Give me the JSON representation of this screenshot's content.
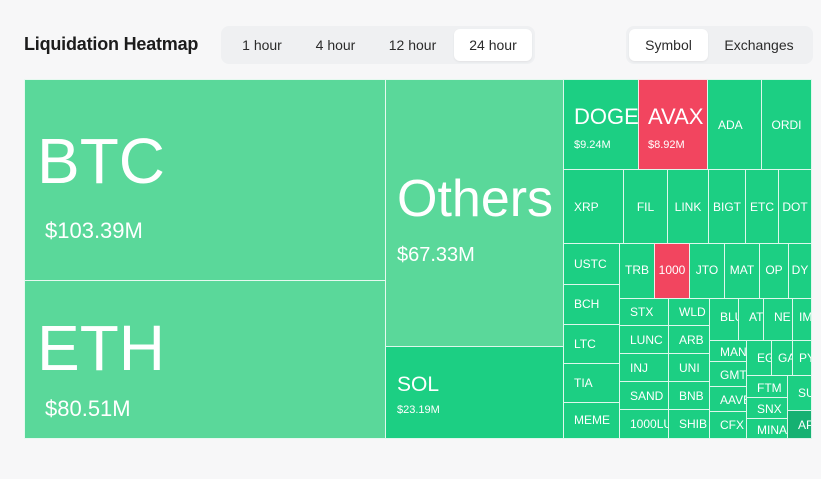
{
  "header": {
    "title": "Liquidation Heatmap",
    "time_options": [
      "1 hour",
      "4 hour",
      "12 hour",
      "24 hour"
    ],
    "time_selected": "24 hour",
    "view_options": [
      "Symbol",
      "Exchanges"
    ],
    "view_selected": "Symbol"
  },
  "colors": {
    "long_light": "#5ad89a",
    "long": "#1ccf83",
    "short": "#f2455f",
    "long_dark": "#16b172"
  },
  "tiles": {
    "btc": {
      "symbol": "BTC",
      "value": "$103.39M"
    },
    "eth": {
      "symbol": "ETH",
      "value": "$80.51M"
    },
    "others": {
      "symbol": "Others",
      "value": "$67.33M"
    },
    "sol": {
      "symbol": "SOL",
      "value": "$23.19M"
    },
    "doge": {
      "symbol": "DOGE",
      "value": "$9.24M"
    },
    "avax": {
      "symbol": "AVAX",
      "value": "$8.92M"
    },
    "ada": {
      "symbol": "ADA"
    },
    "ordi": {
      "symbol": "ORDI"
    },
    "xrp": {
      "symbol": "XRP"
    },
    "fil": {
      "symbol": "FIL"
    },
    "link": {
      "symbol": "LINK"
    },
    "bigt": {
      "symbol": "BIGT"
    },
    "etc": {
      "symbol": "ETC"
    },
    "dot": {
      "symbol": "DOT"
    },
    "ustc": {
      "symbol": "USTC"
    },
    "trb": {
      "symbol": "TRB"
    },
    "k1000": {
      "symbol": "1000"
    },
    "jto": {
      "symbol": "JTO"
    },
    "mat": {
      "symbol": "MAT"
    },
    "op": {
      "symbol": "OP"
    },
    "dy": {
      "symbol": "DY"
    },
    "bch": {
      "symbol": "BCH"
    },
    "stx": {
      "symbol": "STX"
    },
    "wld": {
      "symbol": "WLD"
    },
    "blu": {
      "symbol": "BLU"
    },
    "ato": {
      "symbol": "ATO"
    },
    "ne": {
      "symbol": "NE"
    },
    "im": {
      "symbol": "IM"
    },
    "ltc": {
      "symbol": "LTC"
    },
    "lunc": {
      "symbol": "LUNC"
    },
    "arb": {
      "symbol": "ARB"
    },
    "man": {
      "symbol": "MAN"
    },
    "eg": {
      "symbol": "EG"
    },
    "ga": {
      "symbol": "GA"
    },
    "py": {
      "symbol": "PY"
    },
    "inj": {
      "symbol": "INJ"
    },
    "uni": {
      "symbol": "UNI"
    },
    "gmt": {
      "symbol": "GMT"
    },
    "tia": {
      "symbol": "TIA"
    },
    "sand": {
      "symbol": "SAND"
    },
    "bnb": {
      "symbol": "BNB"
    },
    "ftm": {
      "symbol": "FTM"
    },
    "su": {
      "symbol": "SU"
    },
    "aave": {
      "symbol": "AAVE"
    },
    "snx": {
      "symbol": "SNX"
    },
    "meme": {
      "symbol": "MEME"
    },
    "lu1000": {
      "symbol": "1000LU"
    },
    "shib": {
      "symbol": "SHIB"
    },
    "cfx": {
      "symbol": "CFX"
    },
    "mina": {
      "symbol": "MINA"
    },
    "ap": {
      "symbol": "AP"
    }
  }
}
